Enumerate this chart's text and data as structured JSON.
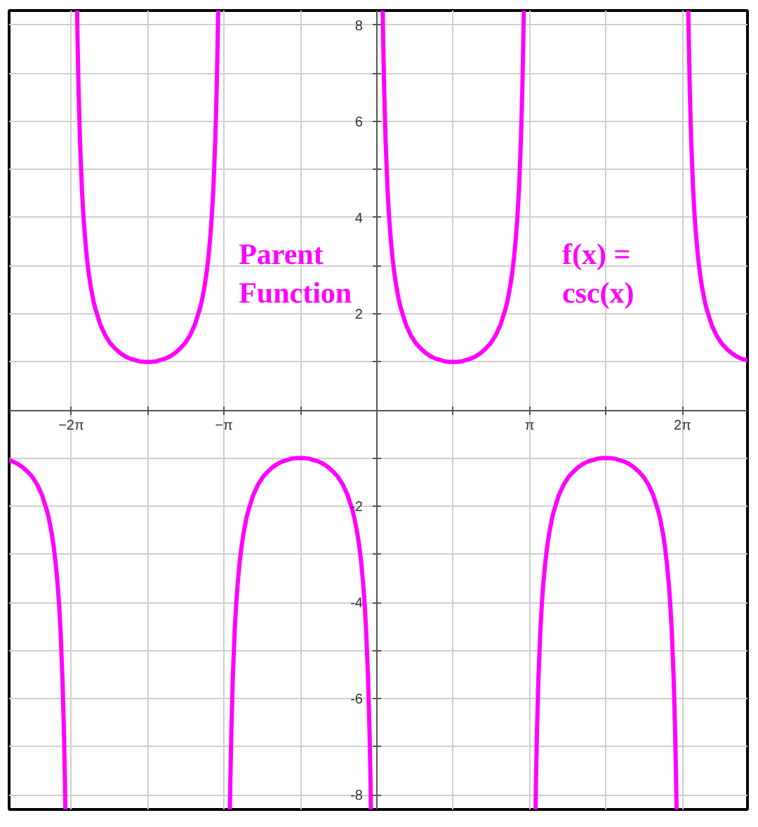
{
  "chart_data": {
    "type": "line",
    "color": "#ff00ff",
    "line_style": "solid",
    "grid": true,
    "xlim": [
      -7.56,
      7.62
    ],
    "ylim": [
      -8.3,
      8.3
    ],
    "xticks": [
      {
        "value": -6.2832,
        "label": "−2π"
      },
      {
        "value": -4.7124,
        "label": null
      },
      {
        "value": -3.1416,
        "label": "−π"
      },
      {
        "value": -1.5708,
        "label": null
      },
      {
        "value": 1.5708,
        "label": null
      },
      {
        "value": 3.1416,
        "label": "π"
      },
      {
        "value": 4.7124,
        "label": null
      },
      {
        "value": 6.2832,
        "label": "2π"
      }
    ],
    "yticks": [
      -8,
      {
        "value": -7,
        "label": null
      },
      -6,
      {
        "value": -5,
        "label": null
      },
      -4,
      {
        "value": -3,
        "label": null
      },
      -2,
      {
        "value": -1,
        "label": null
      },
      {
        "value": 1,
        "label": null
      },
      2,
      {
        "value": 3,
        "label": null
      },
      4,
      {
        "value": 5,
        "label": null
      },
      6,
      {
        "value": 7,
        "label": null
      },
      8
    ],
    "annotations": [
      "Parent\nFunction",
      "f(x) =\ncsc(x)"
    ],
    "x": [
      -7.56,
      -7.483,
      -7.383,
      -7.283,
      -7.183,
      -7.083,
      -6.983,
      -6.883,
      -6.783,
      -6.743,
      -6.683,
      -6.643,
      -6.603,
      -6.563,
      -6.533,
      -6.503,
      -6.463,
      -6.433,
      -6.413,
      -6.404,
      -6.283,
      -6.162,
      -6.153,
      -6.133,
      -6.103,
      -6.063,
      -6.033,
      -6.003,
      -5.963,
      -5.923,
      -5.883,
      -5.823,
      -5.783,
      -5.683,
      -5.583,
      -5.483,
      -5.383,
      -5.283,
      -5.183,
      -5.083,
      -4.983,
      -4.883,
      -4.783,
      -4.712,
      -4.642,
      -4.542,
      -4.442,
      -4.342,
      -4.242,
      -4.142,
      -4.042,
      -3.942,
      -3.842,
      -3.742,
      -3.642,
      -3.602,
      -3.542,
      -3.502,
      -3.462,
      -3.422,
      -3.392,
      -3.362,
      -3.322,
      -3.292,
      -3.272,
      -3.263,
      -3.142,
      -3.021,
      -3.012,
      -2.992,
      -2.962,
      -2.922,
      -2.892,
      -2.862,
      -2.822,
      -2.782,
      -2.742,
      -2.682,
      -2.642,
      -2.542,
      -2.442,
      -2.342,
      -2.242,
      -2.142,
      -2.042,
      -1.942,
      -1.842,
      -1.742,
      -1.642,
      -1.571,
      -1.5,
      -1.4,
      -1.3,
      -1.2,
      -1.1,
      -1.0,
      -0.9,
      -0.8,
      -0.7,
      -0.6,
      -0.5,
      -0.46,
      -0.4,
      -0.36,
      -0.32,
      -0.28,
      -0.25,
      -0.22,
      -0.18,
      -0.15,
      -0.13,
      -0.121,
      0,
      0.121,
      0.13,
      0.15,
      0.18,
      0.22,
      0.25,
      0.28,
      0.32,
      0.36,
      0.4,
      0.46,
      0.5,
      0.6,
      0.7,
      0.8,
      0.9,
      1.0,
      1.1,
      1.2,
      1.3,
      1.4,
      1.5,
      1.571,
      1.642,
      1.742,
      1.842,
      1.942,
      2.042,
      2.142,
      2.242,
      2.342,
      2.442,
      2.542,
      2.642,
      2.682,
      2.742,
      2.782,
      2.822,
      2.862,
      2.892,
      2.922,
      2.962,
      2.992,
      3.012,
      3.021,
      3.142,
      3.263,
      3.272,
      3.292,
      3.322,
      3.362,
      3.392,
      3.422,
      3.462,
      3.502,
      3.542,
      3.602,
      3.642,
      3.742,
      3.842,
      3.942,
      4.042,
      4.142,
      4.242,
      4.342,
      4.442,
      4.542,
      4.642,
      4.712,
      4.783,
      4.883,
      4.983,
      5.083,
      5.183,
      5.283,
      5.383,
      5.483,
      5.583,
      5.683,
      5.783,
      5.823,
      5.883,
      5.923,
      5.963,
      6.003,
      6.033,
      6.063,
      6.103,
      6.133,
      6.153,
      6.162,
      6.283,
      6.404,
      6.413,
      6.433,
      6.463,
      6.503,
      6.533,
      6.563,
      6.603,
      6.643,
      6.683,
      6.743,
      6.783,
      6.883,
      6.983,
      7.083,
      7.183,
      7.283,
      7.383,
      7.483,
      7.583,
      7.62
    ],
    "values": [
      -1.04,
      -1.07,
      -1.12,
      -1.19,
      -1.28,
      -1.39,
      -1.55,
      -1.77,
      -2.09,
      -2.25,
      -2.57,
      -2.84,
      -3.18,
      -3.62,
      -4.04,
      -4.58,
      -5.59,
      -6.69,
      -7.71,
      -8.28,
      null,
      8.28,
      7.71,
      6.69,
      5.59,
      4.58,
      4.04,
      3.62,
      3.18,
      2.84,
      2.57,
      2.25,
      2.09,
      1.77,
      1.55,
      1.39,
      1.28,
      1.19,
      1.12,
      1.07,
      1.04,
      1.01,
      1,
      1,
      1,
      1.01,
      1.04,
      1.07,
      1.12,
      1.19,
      1.28,
      1.39,
      1.55,
      1.77,
      2.09,
      2.25,
      2.57,
      2.84,
      3.18,
      3.62,
      4.04,
      4.58,
      5.59,
      6.69,
      7.71,
      8.28,
      null,
      -8.28,
      -7.71,
      -6.69,
      -5.59,
      -4.58,
      -4.04,
      -3.62,
      -3.18,
      -2.84,
      -2.57,
      -2.25,
      -2.09,
      -1.77,
      -1.55,
      -1.39,
      -1.28,
      -1.19,
      -1.12,
      -1.07,
      -1.04,
      -1.01,
      -1,
      -1,
      -1,
      -1.01,
      -1.04,
      -1.07,
      -1.12,
      -1.19,
      -1.28,
      -1.39,
      -1.55,
      -1.77,
      -2.09,
      -2.25,
      -2.57,
      -2.84,
      -3.18,
      -3.62,
      -4.04,
      -4.58,
      -5.59,
      -6.69,
      -7.71,
      -8.28,
      null,
      8.28,
      7.71,
      6.69,
      5.59,
      4.58,
      4.04,
      3.62,
      3.18,
      2.84,
      2.57,
      2.25,
      2.09,
      1.77,
      1.55,
      1.39,
      1.28,
      1.19,
      1.12,
      1.07,
      1.04,
      1.01,
      1,
      1,
      1,
      1.01,
      1.04,
      1.07,
      1.12,
      1.19,
      1.28,
      1.39,
      1.55,
      1.77,
      2.09,
      2.25,
      2.57,
      2.84,
      3.18,
      3.62,
      4.04,
      4.58,
      5.59,
      6.69,
      7.71,
      8.28,
      null,
      -8.28,
      -7.71,
      -6.69,
      -5.59,
      -4.58,
      -4.04,
      -3.62,
      -3.18,
      -2.84,
      -2.57,
      -2.25,
      -2.09,
      -1.77,
      -1.55,
      -1.39,
      -1.28,
      -1.19,
      -1.12,
      -1.07,
      -1.04,
      -1.01,
      -1,
      -1,
      -1,
      -1.01,
      -1.04,
      -1.07,
      -1.12,
      -1.19,
      -1.28,
      -1.39,
      -1.55,
      -1.77,
      -2.09,
      -2.25,
      -2.57,
      -2.84,
      -3.18,
      -3.62,
      -4.04,
      -4.58,
      -5.59,
      -6.69,
      -7.71,
      -8.28,
      null,
      8.28,
      7.71,
      6.69,
      5.59,
      4.58,
      4.04,
      3.62,
      3.18,
      2.84,
      2.57,
      2.25,
      2.09,
      1.77,
      1.55,
      1.39,
      1.28,
      1.19,
      1.12,
      1.07,
      1.04,
      1.03
    ]
  }
}
